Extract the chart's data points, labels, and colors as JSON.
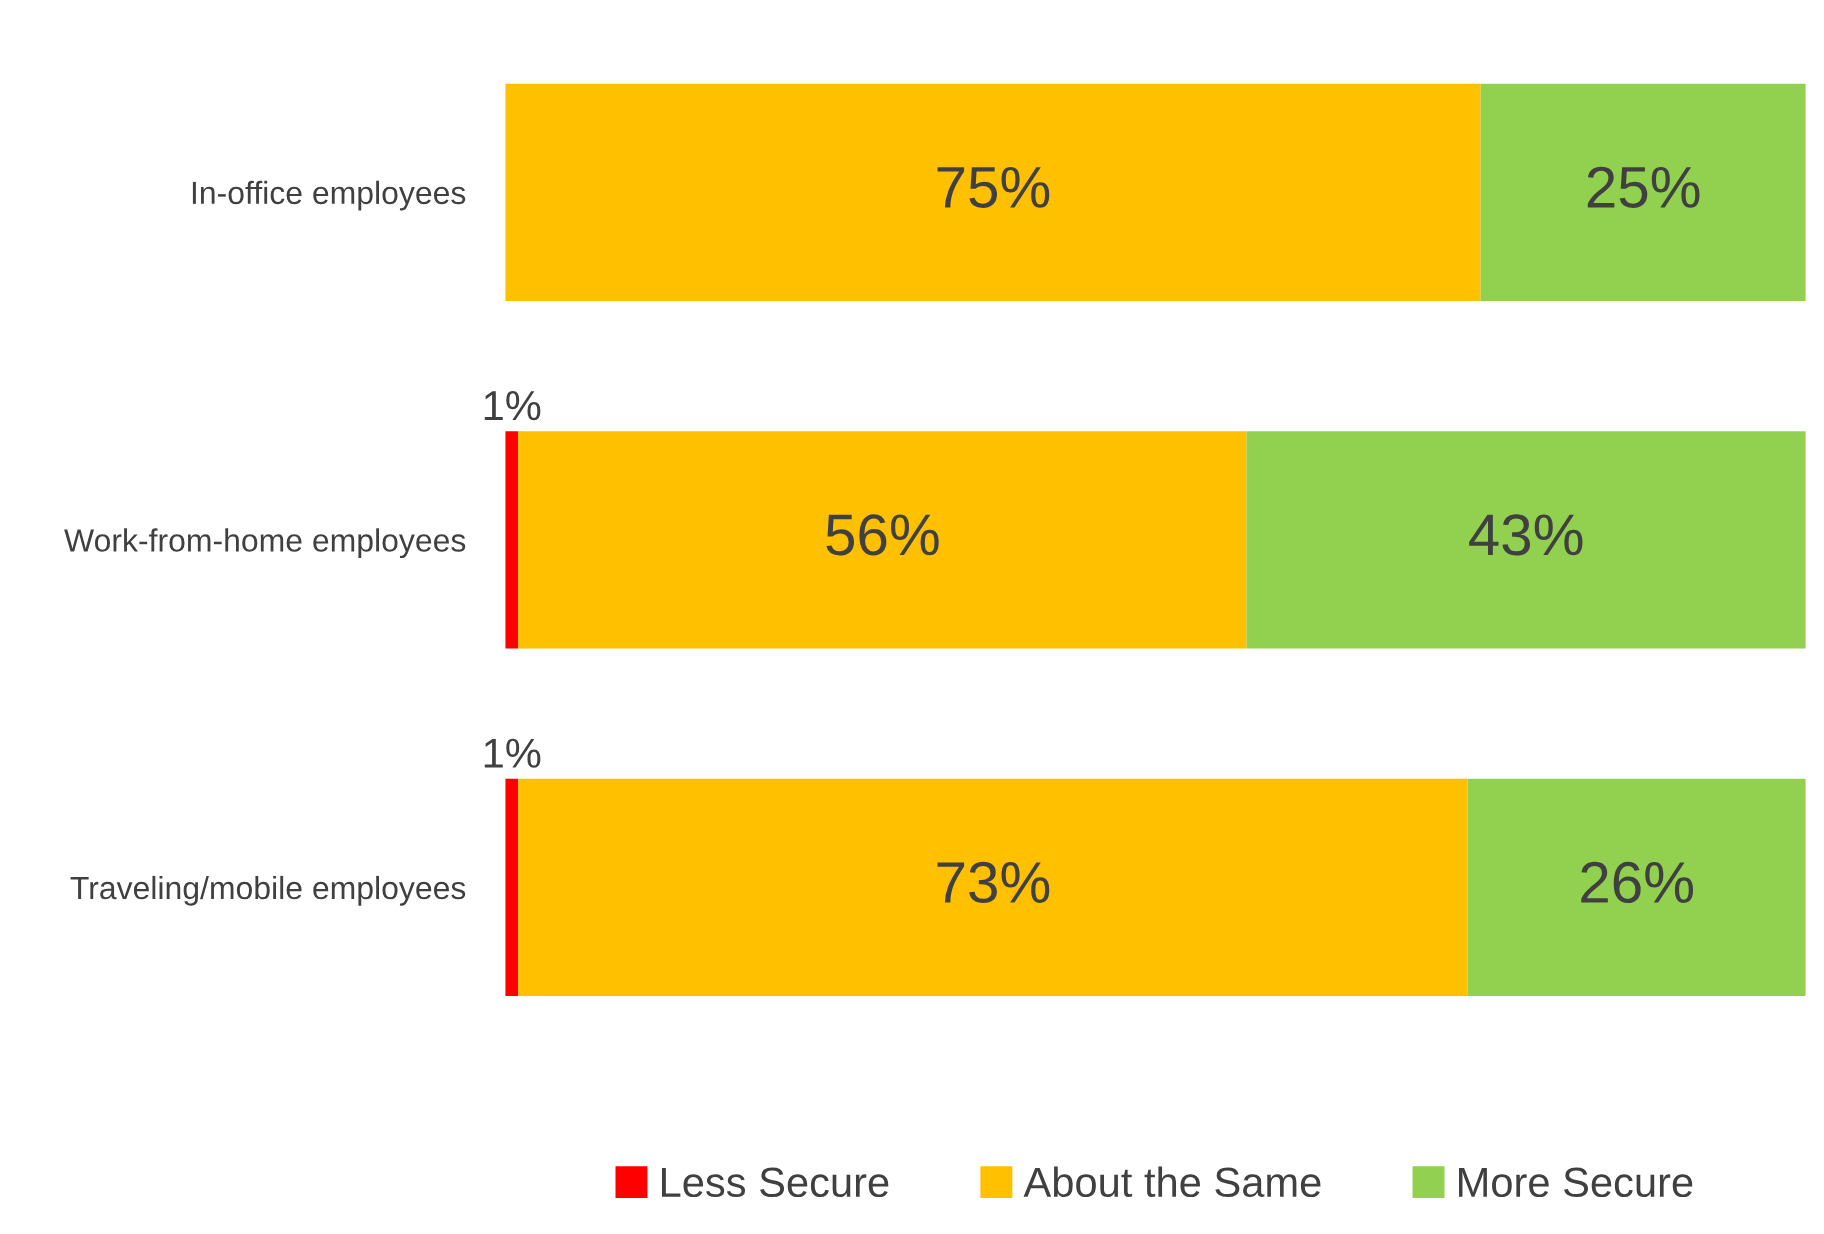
{
  "chart_data": {
    "type": "bar",
    "orientation": "horizontal",
    "stacked": true,
    "legend": "bottom",
    "tick_labels": "y",
    "categories": [
      "In-office employees",
      "Work-from-home employees",
      "Traveling/mobile employees"
    ],
    "series": [
      {
        "name": "Less Secure",
        "color": "#ff0000",
        "values": [
          null,
          1,
          1
        ],
        "value_labels": [
          null,
          "1%",
          "1%"
        ]
      },
      {
        "name": "About the Same",
        "color": "#ffc000",
        "values": [
          75,
          56,
          73
        ],
        "value_labels": [
          "75%",
          "56%",
          "73%"
        ]
      },
      {
        "name": "More Secure",
        "color": "#92d050",
        "values": [
          25,
          43,
          26
        ],
        "value_labels": [
          "25%",
          "43%",
          "26%"
        ]
      }
    ]
  }
}
